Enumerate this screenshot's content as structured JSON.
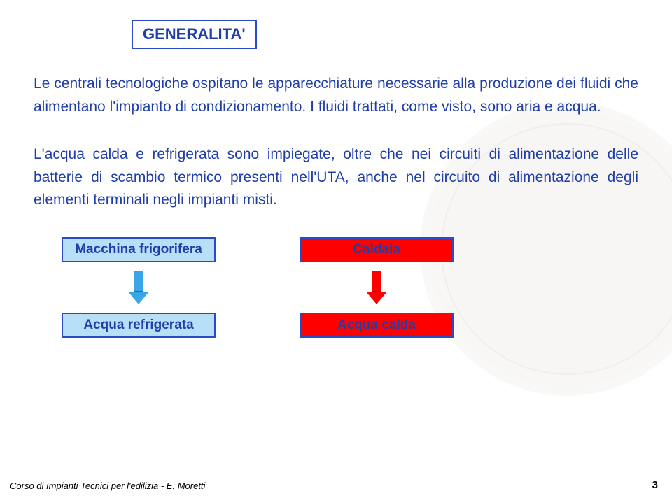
{
  "title": {
    "text": "GENERALITA'",
    "color": "#1f3ea8",
    "border_color": "#2a4bc7"
  },
  "paragraphs": {
    "p1": "Le centrali tecnologiche ospitano le apparecchiature necessarie alla produzione dei fluidi che alimentano l'impianto di condizionamento. I fluidi trattati, come visto, sono aria e acqua.",
    "p2": "L'acqua calda e refrigerata sono impiegate, oltre che nei circuiti di alimentazione delle batterie di scambio termico presenti nell'UTA, anche nel circuito di alimentazione degli elementi terminali negli impianti misti.",
    "text_color": "#1f3ea8"
  },
  "diagram": {
    "top_left": {
      "label": "Macchina frigorifera",
      "bg": "#b7dff7",
      "border": "#2a4bc7",
      "text": "#1f3ea8"
    },
    "top_right": {
      "label": "Caldaia",
      "bg": "#ff0000",
      "border": "#2a4bc7",
      "text": "#1f3ea8"
    },
    "bottom_left": {
      "label": "Acqua refrigerata",
      "bg": "#b7dff7",
      "border": "#2a4bc7",
      "text": "#1f3ea8"
    },
    "bottom_right": {
      "label": "Acqua calda",
      "bg": "#ff0000",
      "border": "#2a4bc7",
      "text": "#1f3ea8"
    },
    "arrow_left": {
      "fill": "#3aa6e8",
      "border": "#1f6fb0"
    },
    "arrow_right": {
      "fill": "#ff0000",
      "border": "#b00000"
    }
  },
  "footer": {
    "text": "Corso di Impianti Tecnici per l'edilizia - E. Moretti",
    "page": "3"
  },
  "page_bg": "#ffffff"
}
